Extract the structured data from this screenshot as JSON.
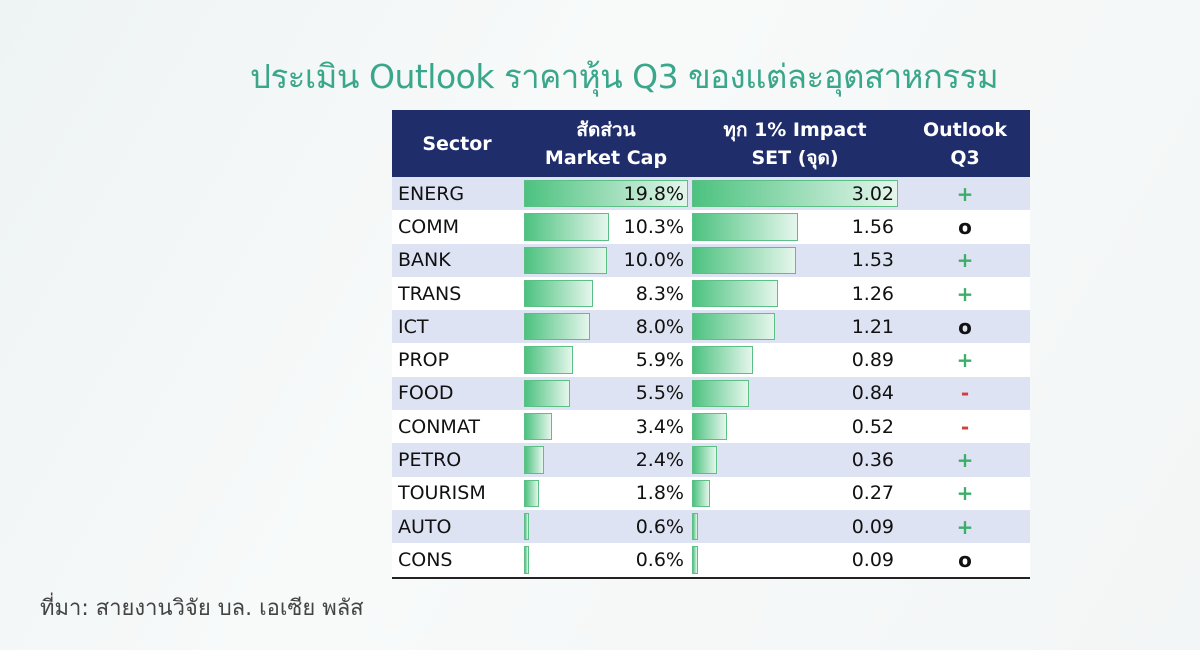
{
  "title": "ประเมิน Outlook ราคาหุ้น Q3 ของแต่ละอุตสาหกรรม",
  "source": "ที่มา: สายงานวิจัย บล. เอเซีย พลัส",
  "colors": {
    "header_bg": "#1f2d6b",
    "positive": "#3cae6a",
    "negative": "#d04040",
    "neutral": "#111111",
    "bar": "#4cc27f",
    "row_alt": "#dde3f2"
  },
  "chart_data": {
    "type": "table",
    "columns": [
      {
        "line1": "",
        "line2": "Sector"
      },
      {
        "line1": "สัดส่วน",
        "line2": "Market Cap"
      },
      {
        "line1": "ทุก 1% Impact",
        "line2": "SET (จุด)"
      },
      {
        "line1": "Outlook",
        "line2": "Q3"
      }
    ],
    "rows": [
      {
        "sector": "ENERG",
        "market_cap": "19.8%",
        "impact": "3.02",
        "outlook": "+"
      },
      {
        "sector": "COMM",
        "market_cap": "10.3%",
        "impact": "1.56",
        "outlook": "o"
      },
      {
        "sector": "BANK",
        "market_cap": "10.0%",
        "impact": "1.53",
        "outlook": "+"
      },
      {
        "sector": "TRANS",
        "market_cap": "8.3%",
        "impact": "1.26",
        "outlook": "+"
      },
      {
        "sector": "ICT",
        "market_cap": "8.0%",
        "impact": "1.21",
        "outlook": "o"
      },
      {
        "sector": "PROP",
        "market_cap": "5.9%",
        "impact": "0.89",
        "outlook": "+"
      },
      {
        "sector": "FOOD",
        "market_cap": "5.5%",
        "impact": "0.84",
        "outlook": "-"
      },
      {
        "sector": "CONMAT",
        "market_cap": "3.4%",
        "impact": "0.52",
        "outlook": "-"
      },
      {
        "sector": "PETRO",
        "market_cap": "2.4%",
        "impact": "0.36",
        "outlook": "+"
      },
      {
        "sector": "TOURISM",
        "market_cap": "1.8%",
        "impact": "0.27",
        "outlook": "+"
      },
      {
        "sector": "AUTO",
        "market_cap": "0.6%",
        "impact": "0.09",
        "outlook": "+"
      },
      {
        "sector": "CONS",
        "market_cap": "0.6%",
        "impact": "0.09",
        "outlook": "o"
      }
    ]
  }
}
